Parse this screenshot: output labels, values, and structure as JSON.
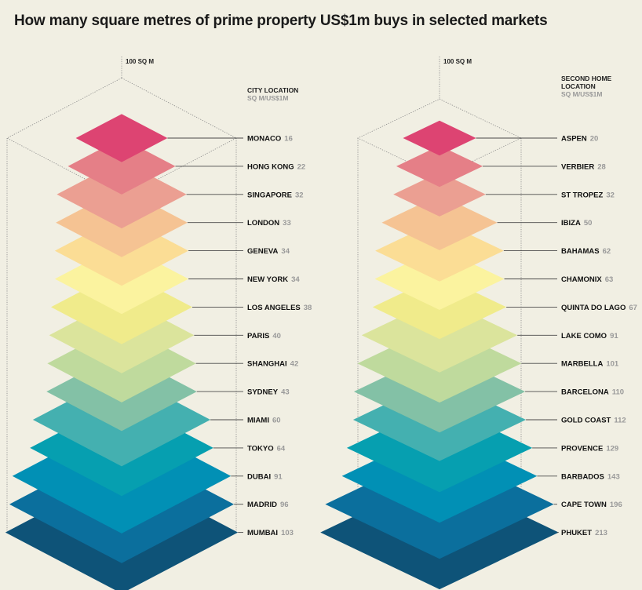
{
  "title": "How many square metres of prime property US$1m buys in selected markets",
  "colors": [
    "#dd4472",
    "#e57f87",
    "#eb9f92",
    "#f5c393",
    "#fbdd95",
    "#fbf39f",
    "#f0eb8b",
    "#dbe49c",
    "#bfda9d",
    "#83c1a6",
    "#44b0b0",
    "#069fb0",
    "#0190b5",
    "#0b6f9d",
    "#0e5378"
  ],
  "chart_data": [
    {
      "type": "bar",
      "heading": "CITY LOCATION",
      "unit": "SQ M/US$1M",
      "reference_label": "100 SQ M",
      "reference_value": 100,
      "categories": [
        "MONACO",
        "HONG KONG",
        "SINGAPORE",
        "LONDON",
        "GENEVA",
        "NEW YORK",
        "LOS ANGELES",
        "PARIS",
        "SHANGHAI",
        "SYDNEY",
        "MIAMI",
        "TOKYO",
        "DUBAI",
        "MADRID",
        "MUMBAI"
      ],
      "values": [
        16,
        22,
        32,
        33,
        34,
        34,
        38,
        40,
        42,
        43,
        60,
        64,
        91,
        96,
        103
      ]
    },
    {
      "type": "bar",
      "heading": "SECOND HOME LOCATION",
      "unit": "SQ M/US$1M",
      "reference_label": "100 SQ M",
      "reference_value": 100,
      "categories": [
        "ASPEN",
        "VERBIER",
        "ST TROPEZ",
        "IBIZA",
        "BAHAMAS",
        "CHAMONIX",
        "QUINTA DO LAGO",
        "LAKE COMO",
        "MARBELLA",
        "BARCELONA",
        "GOLD COAST",
        "PROVENCE",
        "BARBADOS",
        "CAPE TOWN",
        "PHUKET"
      ],
      "values": [
        20,
        28,
        32,
        50,
        62,
        63,
        67,
        91,
        101,
        110,
        112,
        129,
        143,
        196,
        213
      ]
    }
  ]
}
